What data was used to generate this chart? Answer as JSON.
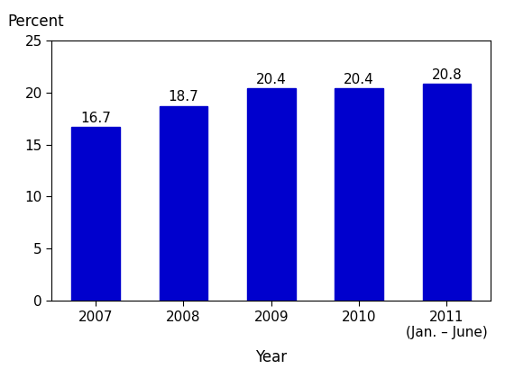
{
  "categories": [
    "2007",
    "2008",
    "2009",
    "2010",
    "2011"
  ],
  "values": [
    16.7,
    18.7,
    20.4,
    20.4,
    20.8
  ],
  "bar_color": "#0000CD",
  "bar_edgecolor": "#0000CD",
  "ylabel": "Percent",
  "xlabel": "Year",
  "ylim": [
    0,
    25
  ],
  "yticks": [
    0,
    5,
    10,
    15,
    20,
    25
  ],
  "bar_labels": [
    "16.7",
    "18.7",
    "20.4",
    "20.4",
    "20.8"
  ],
  "x_tick_labels": [
    "2007",
    "2008",
    "2009",
    "2010",
    "2011\n(Jan. – June)"
  ],
  "label_fontsize": 11,
  "tick_fontsize": 11,
  "axis_label_fontsize": 12,
  "background_color": "#ffffff",
  "bar_width": 0.55
}
